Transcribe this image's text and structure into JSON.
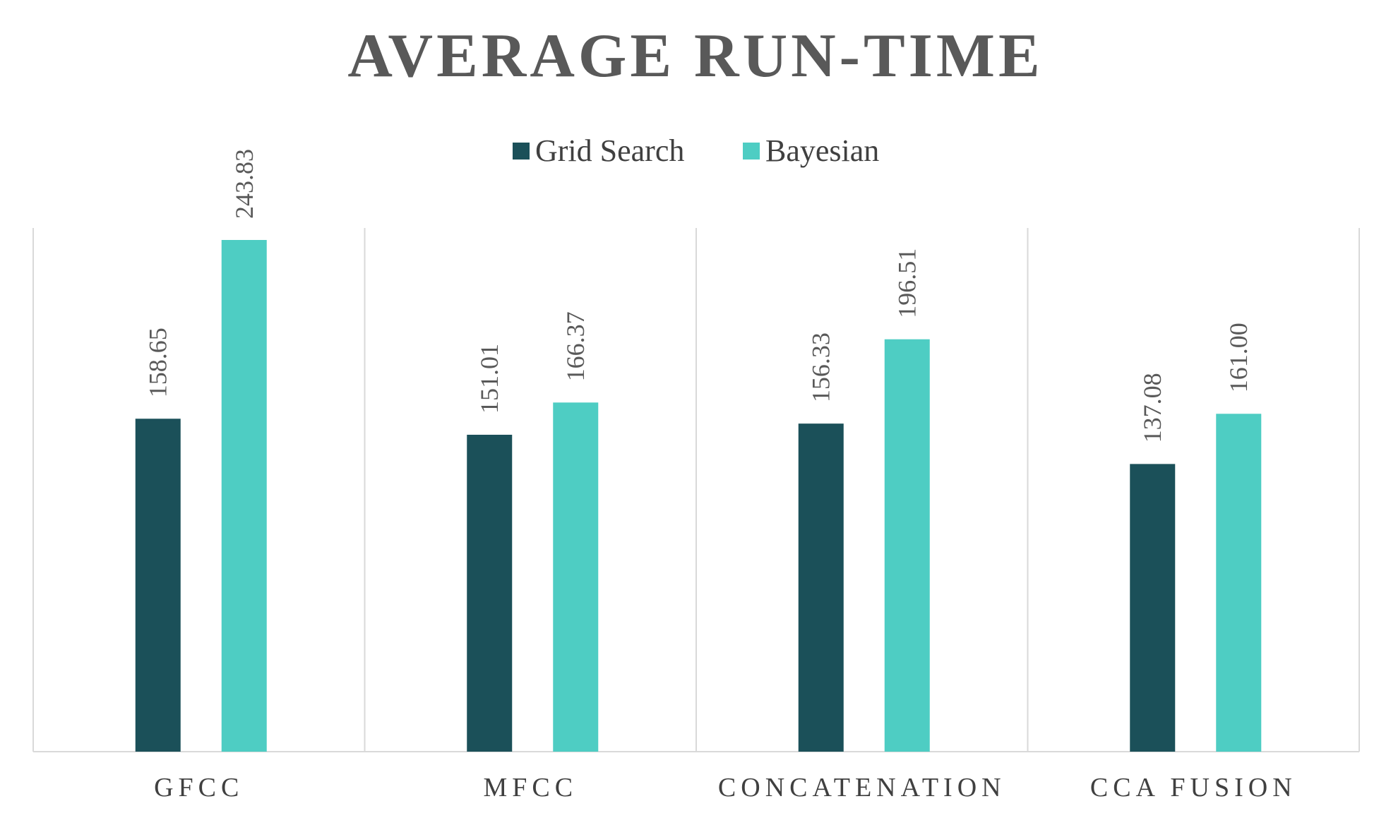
{
  "chart_data": {
    "type": "bar",
    "title": "AVERAGE RUN-TIME",
    "xlabel": "",
    "ylabel": "",
    "categories": [
      "GFCC",
      "MFCC",
      "CONCATENATION",
      "CCA FUSION"
    ],
    "series": [
      {
        "name": "Grid Search",
        "color": "#1b5059",
        "values": [
          158.65,
          151.01,
          156.33,
          137.08
        ]
      },
      {
        "name": "Bayesian",
        "color": "#4ecdc3",
        "values": [
          243.83,
          166.37,
          196.51,
          161.0
        ]
      }
    ],
    "value_labels": [
      [
        "158.65",
        "151.01",
        "156.33",
        "137.08"
      ],
      [
        "243.83",
        "166.37",
        "196.51",
        "161.00"
      ]
    ],
    "ylim": [
      0,
      250
    ],
    "grid": false,
    "legend": "top-center"
  }
}
